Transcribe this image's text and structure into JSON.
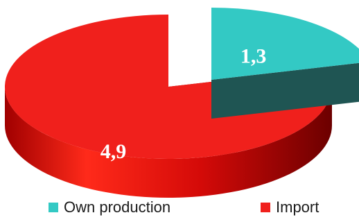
{
  "chart_data": {
    "type": "pie",
    "categories": [
      "Own production",
      "Import"
    ],
    "values": [
      1.3,
      4.9
    ],
    "data_labels": [
      "1,3",
      "4,9"
    ],
    "colors": [
      "#33c9c4",
      "#f0201c"
    ],
    "exploded": "Own production",
    "legend_position": "bottom"
  }
}
